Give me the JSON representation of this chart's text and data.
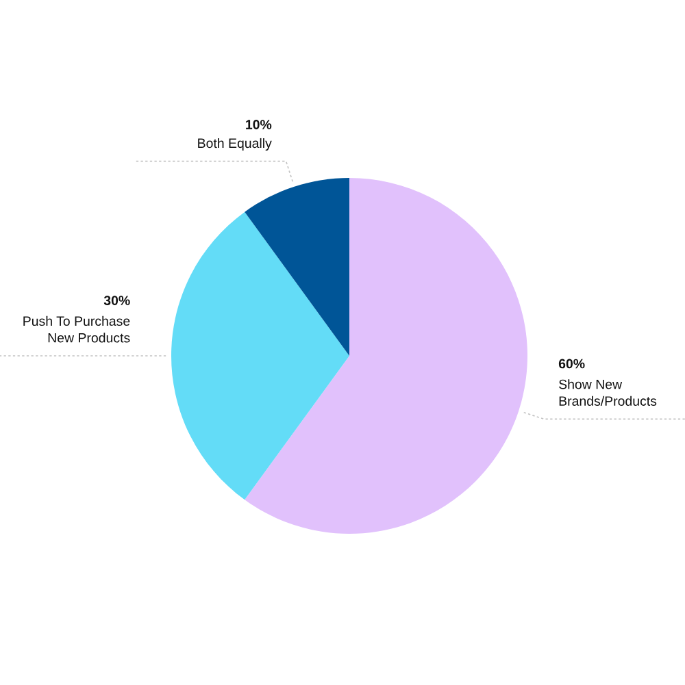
{
  "chart_data": {
    "type": "pie",
    "categories": [
      "Show New Brands/Products",
      "Push To Purchase New Products",
      "Both Equally"
    ],
    "values": [
      60,
      30,
      10
    ],
    "colors": [
      "#e1c1fc",
      "#63dcf7",
      "#005597"
    ],
    "value_labels": [
      "60%",
      "30%",
      "10%"
    ]
  }
}
